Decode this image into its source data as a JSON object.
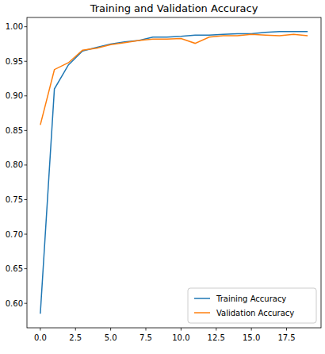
{
  "chart_data": {
    "type": "line",
    "title": "Training and Validation Accuracy",
    "x": [
      0,
      1,
      2,
      3,
      4,
      5,
      6,
      7,
      8,
      9,
      10,
      11,
      12,
      13,
      14,
      15,
      16,
      17,
      18,
      19
    ],
    "series": [
      {
        "name": "Training Accuracy",
        "color": "#1f77b4",
        "values": [
          0.585,
          0.91,
          0.945,
          0.965,
          0.97,
          0.975,
          0.978,
          0.98,
          0.985,
          0.985,
          0.986,
          0.988,
          0.988,
          0.989,
          0.99,
          0.99,
          0.992,
          0.993,
          0.993,
          0.993
        ]
      },
      {
        "name": "Validation Accuracy",
        "color": "#ff7f0e",
        "values": [
          0.858,
          0.938,
          0.948,
          0.966,
          0.969,
          0.974,
          0.977,
          0.98,
          0.982,
          0.982,
          0.983,
          0.976,
          0.985,
          0.987,
          0.987,
          0.989,
          0.988,
          0.987,
          0.989,
          0.987
        ]
      }
    ],
    "xlim": [
      -0.95,
      19.95
    ],
    "ylim": [
      0.5646,
      1.0134
    ],
    "xticks": [
      {
        "value": 0,
        "label": "0.0"
      },
      2.5,
      {
        "value": 5,
        "label": "5.0"
      },
      7.5,
      {
        "value": 10,
        "label": "10.0"
      },
      12.5,
      {
        "value": 15,
        "label": "15.0"
      },
      17.5
    ],
    "yticks": [
      {
        "value": 0.6,
        "label": "0.60"
      },
      {
        "value": 0.65,
        "label": "0.65"
      },
      {
        "value": 0.7,
        "label": "0.70"
      },
      {
        "value": 0.75,
        "label": "0.75"
      },
      {
        "value": 0.8,
        "label": "0.80"
      },
      {
        "value": 0.85,
        "label": "0.85"
      },
      {
        "value": 0.9,
        "label": "0.90"
      },
      {
        "value": 0.95,
        "label": "0.95"
      },
      {
        "value": 1,
        "label": "1.00"
      }
    ],
    "legend": "lower right",
    "grid": false
  }
}
